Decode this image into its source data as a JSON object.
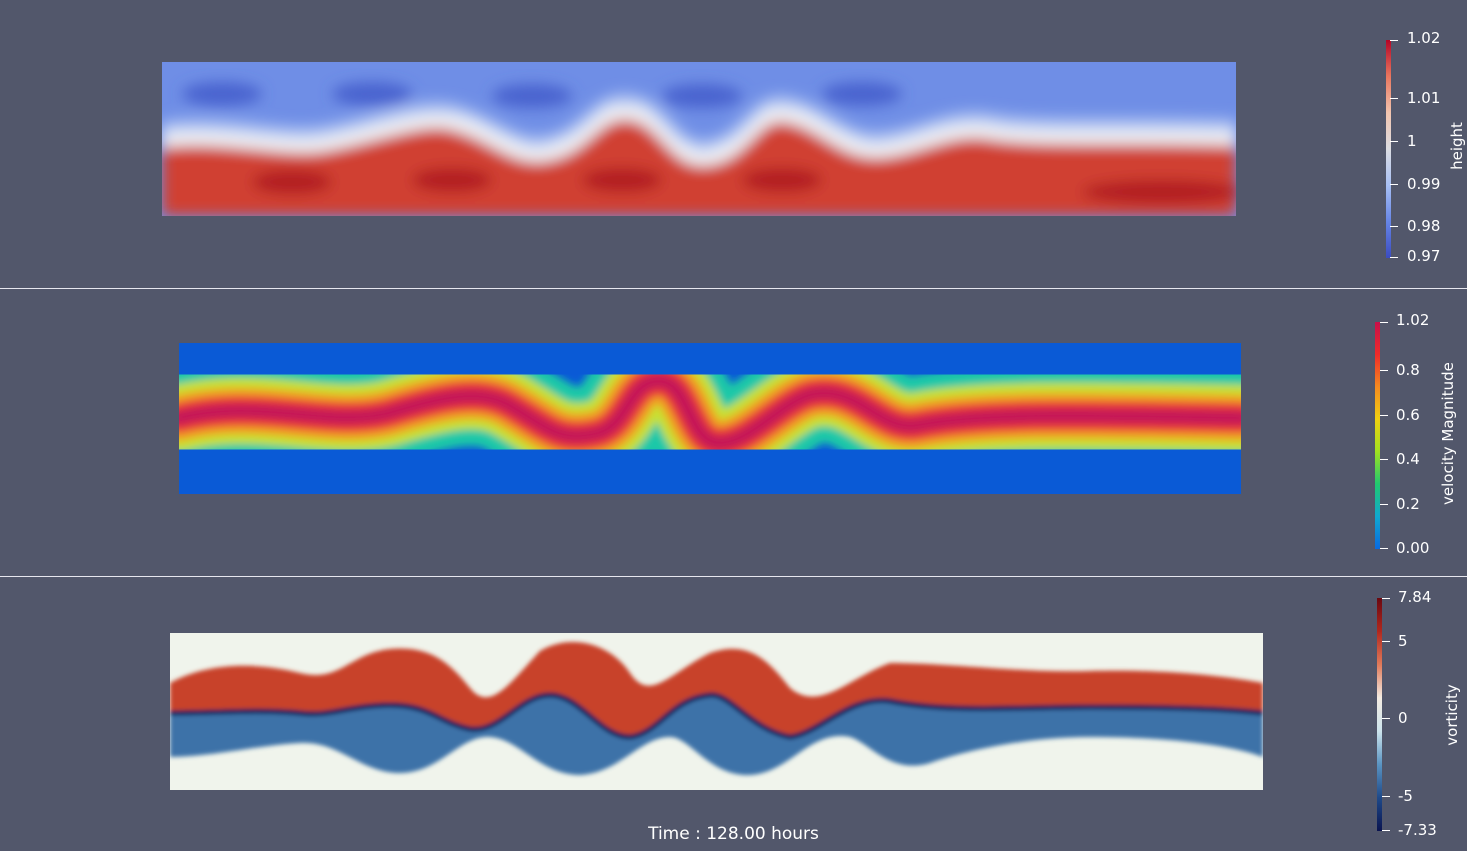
{
  "panels": {
    "height": {
      "title": "height",
      "ticks": [
        "1.02",
        "1.01",
        "1",
        "0.99",
        "0.98",
        "0.97"
      ],
      "range": [
        0.97,
        1.02
      ],
      "colormap": "cool-to-warm",
      "colors": {
        "low": "#3b4cc0",
        "mid": "#e6e6ea",
        "high": "#b40426"
      }
    },
    "velocity": {
      "title": "velocity Magnitude",
      "ticks": [
        "1.02",
        "0.8",
        "0.6",
        "0.4",
        "0.2",
        "0.00"
      ],
      "range": [
        0.0,
        1.02
      ],
      "colormap": "jet-like",
      "colors": {
        "low": "#0a4fd0",
        "mid": "#d8e800",
        "high": "#c0145a"
      }
    },
    "vorticity": {
      "title": "vorticity",
      "ticks": [
        "7.84",
        "5",
        "0",
        "-5",
        "-7.33"
      ],
      "range": [
        -7.33,
        7.84
      ],
      "colormap": "red-blue diverging",
      "colors": {
        "low": "#0c1f5a",
        "mid": "#f2f6ee",
        "high": "#7a0a12"
      }
    }
  },
  "time": {
    "label": "Time : 128.00 hours"
  }
}
